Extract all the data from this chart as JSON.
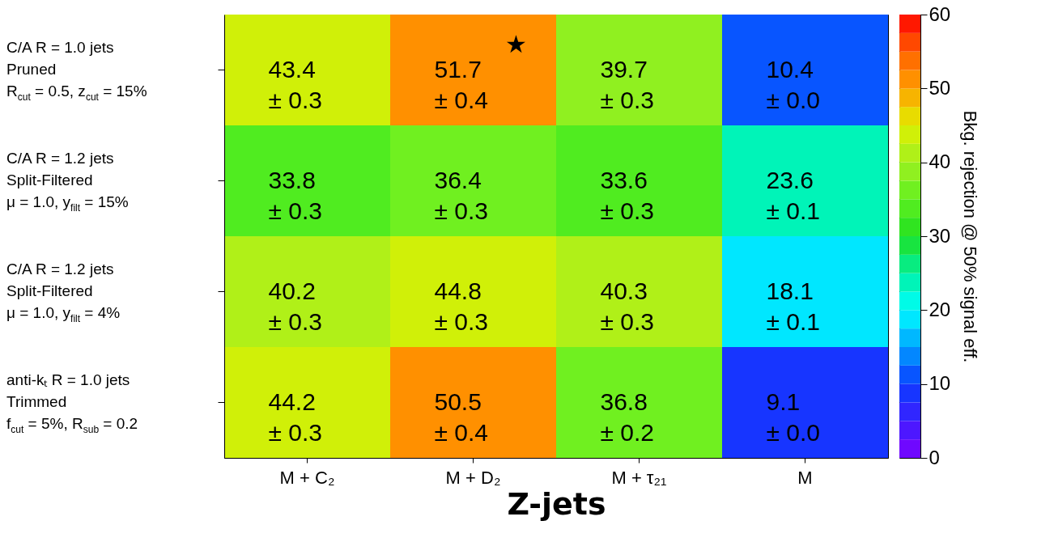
{
  "chart_data": {
    "type": "heatmap",
    "xlabel": "Z-jets",
    "clabel": "Bkg. rejection @ 50% signal eff.",
    "categories": [
      "M + C₂",
      "M + D₂",
      "M + τ₂₁",
      "M"
    ],
    "y_categories": [
      "C/A R = 1.0 jets\nPruned\nR$_{cut}$ = 0.5, z$_{cut}$ = 15%",
      "C/A R = 1.2 jets\nSplit-Filtered\nμ = 1.0, y$_{filt}$ = 15%",
      "C/A R = 1.2 jets\nSplit-Filtered\nμ = 1.0, y$_{filt}$ = 4%",
      "anti-kₜ R = 1.0 jets\nTrimmed\nf$_{cut}$ = 5%, R$_{sub}$ = 0.2"
    ],
    "cells": [
      [
        43.4,
        51.7,
        39.7,
        10.4
      ],
      [
        33.8,
        36.4,
        33.6,
        23.6
      ],
      [
        40.2,
        44.8,
        40.3,
        18.1
      ],
      [
        44.2,
        50.5,
        36.8,
        9.1
      ]
    ],
    "cell_labels": [
      [
        "43.4\n±  0.3",
        "51.7\n±  0.4",
        "39.7\n±  0.3",
        "10.4\n±  0.0"
      ],
      [
        "33.8\n±  0.3",
        "36.4\n±  0.3",
        "33.6\n±  0.3",
        "23.6\n±  0.1"
      ],
      [
        "40.2\n±  0.3",
        "44.8\n±  0.3",
        "40.3\n±  0.3",
        "18.1\n±  0.1"
      ],
      [
        "44.2\n±  0.3",
        "50.5\n±  0.4",
        "36.8\n±  0.2",
        "9.1\n±  0.0"
      ]
    ],
    "clim": [
      0,
      60
    ],
    "cticks": [
      0,
      10,
      20,
      30,
      40,
      50,
      60
    ],
    "annotations": [
      "★"
    ]
  }
}
